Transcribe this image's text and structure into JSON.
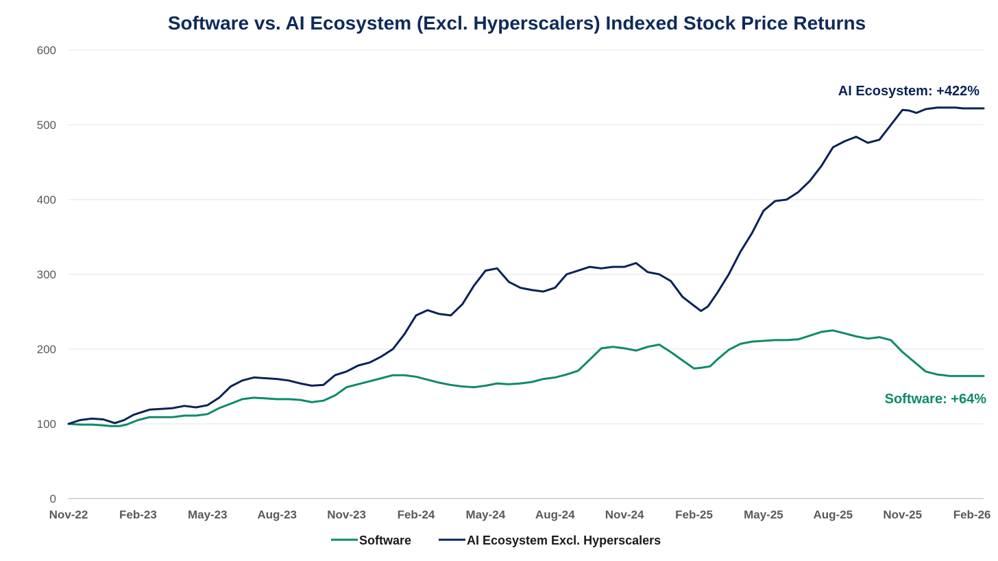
{
  "chart_data": {
    "type": "line",
    "title": "Software vs. AI Ecosystem (Excl. Hyperscalers) Indexed Stock Price Returns",
    "xlabel": "",
    "ylabel": "",
    "ylim": [
      0,
      600
    ],
    "yticks": [
      "0",
      "100",
      "200",
      "300",
      "400",
      "500",
      "600"
    ],
    "xlim": [
      0,
      39.5
    ],
    "xticks": [
      {
        "label": "Nov-22",
        "x": 0
      },
      {
        "label": "Feb-23",
        "x": 3
      },
      {
        "label": "May-23",
        "x": 6
      },
      {
        "label": "Aug-23",
        "x": 9
      },
      {
        "label": "Nov-23",
        "x": 12
      },
      {
        "label": "Feb-24",
        "x": 15
      },
      {
        "label": "May-24",
        "x": 18
      },
      {
        "label": "Aug-24",
        "x": 21
      },
      {
        "label": "Nov-24",
        "x": 24
      },
      {
        "label": "Feb-25",
        "x": 27
      },
      {
        "label": "May-25",
        "x": 30
      },
      {
        "label": "Aug-25",
        "x": 33
      },
      {
        "label": "Nov-25",
        "x": 36
      },
      {
        "label": "Feb-26",
        "x": 39
      }
    ],
    "grid": true,
    "legend_position": "bottom-center",
    "series": [
      {
        "name": "Software",
        "color": "#0e8a6a",
        "x": [
          0,
          0.5,
          1,
          1.5,
          1.8,
          2.2,
          2.5,
          3,
          3.5,
          4,
          4.5,
          5,
          5.5,
          6,
          6.5,
          7,
          7.5,
          8,
          8.5,
          9,
          9.5,
          10,
          10.5,
          11,
          11.5,
          12,
          12.5,
          13,
          13.5,
          14,
          14.5,
          15,
          15.5,
          16,
          16.5,
          17,
          17.5,
          18,
          18.5,
          19,
          19.5,
          20,
          20.5,
          21,
          21.5,
          22,
          22.5,
          23,
          23.5,
          24,
          24.5,
          25,
          25.5,
          26,
          26.5,
          27,
          27.3,
          27.7,
          28,
          28.5,
          29,
          29.5,
          30,
          30.5,
          31,
          31.5,
          32,
          32.5,
          33,
          33.5,
          34,
          34.5,
          35,
          35.5,
          36,
          36.5,
          37,
          37.5,
          37.8,
          38,
          38.3,
          38.6,
          39,
          39.5
        ],
        "values": [
          100,
          99,
          99,
          98,
          97,
          97,
          99,
          105,
          109,
          109,
          109,
          111,
          111,
          113,
          121,
          127,
          133,
          135,
          134,
          133,
          133,
          132,
          129,
          131,
          138,
          149,
          153,
          157,
          161,
          165,
          165,
          163,
          159,
          155,
          152,
          150,
          149,
          151,
          154,
          153,
          154,
          156,
          160,
          162,
          166,
          171,
          186,
          201,
          203,
          201,
          198,
          203,
          206,
          196,
          185,
          174,
          175,
          177,
          186,
          199,
          207,
          210,
          211,
          212,
          212,
          213,
          218,
          223,
          225,
          221,
          217,
          214,
          216,
          212,
          196,
          183,
          170,
          166,
          165,
          164,
          164,
          164,
          164,
          164
        ]
      },
      {
        "name": "AI Ecosystem Excl. Hyperscalers",
        "color": "#0a2257",
        "x": [
          0,
          0.5,
          1,
          1.5,
          2,
          2.4,
          2.8,
          3,
          3.5,
          4,
          4.5,
          5,
          5.5,
          6,
          6.5,
          7,
          7.5,
          8,
          8.5,
          9,
          9.5,
          10,
          10.5,
          11,
          11.5,
          12,
          12.5,
          13,
          13.5,
          14,
          14.5,
          15,
          15.5,
          16,
          16.5,
          17,
          17.5,
          18,
          18.5,
          19,
          19.5,
          20,
          20.5,
          21,
          21.5,
          22,
          22.5,
          23,
          23.5,
          24,
          24.5,
          25,
          25.5,
          26,
          26.5,
          27,
          27.3,
          27.6,
          28,
          28.5,
          29,
          29.5,
          30,
          30.5,
          31,
          31.5,
          32,
          32.5,
          33,
          33.5,
          34,
          34.5,
          35,
          35.5,
          36,
          36.3,
          36.6,
          37,
          37.5,
          38,
          38.3,
          38.6,
          39,
          39.5
        ],
        "values": [
          100,
          105,
          107,
          106,
          101,
          105,
          112,
          114,
          119,
          120,
          121,
          124,
          122,
          125,
          135,
          150,
          158,
          162,
          161,
          160,
          158,
          154,
          151,
          152,
          165,
          170,
          178,
          182,
          190,
          200,
          220,
          245,
          252,
          247,
          245,
          260,
          285,
          305,
          308,
          290,
          282,
          279,
          277,
          282,
          300,
          305,
          310,
          308,
          310,
          310,
          315,
          303,
          300,
          291,
          270,
          258,
          251,
          257,
          275,
          300,
          330,
          355,
          385,
          398,
          400,
          410,
          425,
          445,
          470,
          478,
          484,
          476,
          480,
          500,
          520,
          519,
          516,
          521,
          523,
          523,
          523,
          522,
          522,
          522
        ]
      }
    ],
    "annotations": [
      {
        "text": "AI Ecosystem: +422%",
        "color": "#0a2257",
        "series": "AI Ecosystem Excl. Hyperscalers"
      },
      {
        "text": "Software: +64%",
        "color": "#0e8a6a",
        "series": "Software"
      }
    ]
  }
}
